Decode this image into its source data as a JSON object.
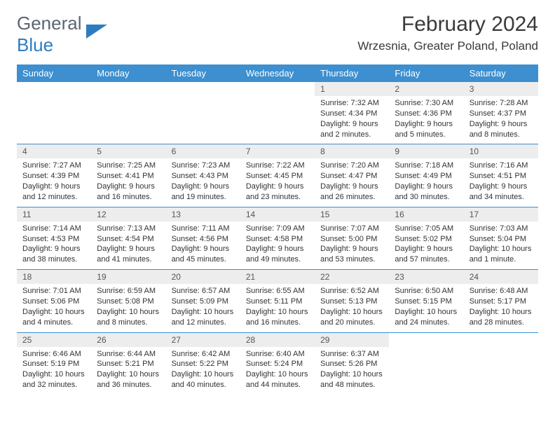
{
  "brand": {
    "part1": "General",
    "part2": "Blue"
  },
  "title": "February 2024",
  "location": "Wrzesnia, Greater Poland, Poland",
  "colors": {
    "header_bg": "#3d8fcf",
    "daynum_bg": "#ededed",
    "row_border": "#3d8fcf",
    "logo_gray": "#5c6670",
    "logo_blue": "#2e7cc0"
  },
  "columns": [
    "Sunday",
    "Monday",
    "Tuesday",
    "Wednesday",
    "Thursday",
    "Friday",
    "Saturday"
  ],
  "weeks": [
    [
      null,
      null,
      null,
      null,
      {
        "n": "1",
        "sunrise": "7:32 AM",
        "sunset": "4:34 PM",
        "daylight": "9 hours and 2 minutes."
      },
      {
        "n": "2",
        "sunrise": "7:30 AM",
        "sunset": "4:36 PM",
        "daylight": "9 hours and 5 minutes."
      },
      {
        "n": "3",
        "sunrise": "7:28 AM",
        "sunset": "4:37 PM",
        "daylight": "9 hours and 8 minutes."
      }
    ],
    [
      {
        "n": "4",
        "sunrise": "7:27 AM",
        "sunset": "4:39 PM",
        "daylight": "9 hours and 12 minutes."
      },
      {
        "n": "5",
        "sunrise": "7:25 AM",
        "sunset": "4:41 PM",
        "daylight": "9 hours and 16 minutes."
      },
      {
        "n": "6",
        "sunrise": "7:23 AM",
        "sunset": "4:43 PM",
        "daylight": "9 hours and 19 minutes."
      },
      {
        "n": "7",
        "sunrise": "7:22 AM",
        "sunset": "4:45 PM",
        "daylight": "9 hours and 23 minutes."
      },
      {
        "n": "8",
        "sunrise": "7:20 AM",
        "sunset": "4:47 PM",
        "daylight": "9 hours and 26 minutes."
      },
      {
        "n": "9",
        "sunrise": "7:18 AM",
        "sunset": "4:49 PM",
        "daylight": "9 hours and 30 minutes."
      },
      {
        "n": "10",
        "sunrise": "7:16 AM",
        "sunset": "4:51 PM",
        "daylight": "9 hours and 34 minutes."
      }
    ],
    [
      {
        "n": "11",
        "sunrise": "7:14 AM",
        "sunset": "4:53 PM",
        "daylight": "9 hours and 38 minutes."
      },
      {
        "n": "12",
        "sunrise": "7:13 AM",
        "sunset": "4:54 PM",
        "daylight": "9 hours and 41 minutes."
      },
      {
        "n": "13",
        "sunrise": "7:11 AM",
        "sunset": "4:56 PM",
        "daylight": "9 hours and 45 minutes."
      },
      {
        "n": "14",
        "sunrise": "7:09 AM",
        "sunset": "4:58 PM",
        "daylight": "9 hours and 49 minutes."
      },
      {
        "n": "15",
        "sunrise": "7:07 AM",
        "sunset": "5:00 PM",
        "daylight": "9 hours and 53 minutes."
      },
      {
        "n": "16",
        "sunrise": "7:05 AM",
        "sunset": "5:02 PM",
        "daylight": "9 hours and 57 minutes."
      },
      {
        "n": "17",
        "sunrise": "7:03 AM",
        "sunset": "5:04 PM",
        "daylight": "10 hours and 1 minute."
      }
    ],
    [
      {
        "n": "18",
        "sunrise": "7:01 AM",
        "sunset": "5:06 PM",
        "daylight": "10 hours and 4 minutes."
      },
      {
        "n": "19",
        "sunrise": "6:59 AM",
        "sunset": "5:08 PM",
        "daylight": "10 hours and 8 minutes."
      },
      {
        "n": "20",
        "sunrise": "6:57 AM",
        "sunset": "5:09 PM",
        "daylight": "10 hours and 12 minutes."
      },
      {
        "n": "21",
        "sunrise": "6:55 AM",
        "sunset": "5:11 PM",
        "daylight": "10 hours and 16 minutes."
      },
      {
        "n": "22",
        "sunrise": "6:52 AM",
        "sunset": "5:13 PM",
        "daylight": "10 hours and 20 minutes."
      },
      {
        "n": "23",
        "sunrise": "6:50 AM",
        "sunset": "5:15 PM",
        "daylight": "10 hours and 24 minutes."
      },
      {
        "n": "24",
        "sunrise": "6:48 AM",
        "sunset": "5:17 PM",
        "daylight": "10 hours and 28 minutes."
      }
    ],
    [
      {
        "n": "25",
        "sunrise": "6:46 AM",
        "sunset": "5:19 PM",
        "daylight": "10 hours and 32 minutes."
      },
      {
        "n": "26",
        "sunrise": "6:44 AM",
        "sunset": "5:21 PM",
        "daylight": "10 hours and 36 minutes."
      },
      {
        "n": "27",
        "sunrise": "6:42 AM",
        "sunset": "5:22 PM",
        "daylight": "10 hours and 40 minutes."
      },
      {
        "n": "28",
        "sunrise": "6:40 AM",
        "sunset": "5:24 PM",
        "daylight": "10 hours and 44 minutes."
      },
      {
        "n": "29",
        "sunrise": "6:37 AM",
        "sunset": "5:26 PM",
        "daylight": "10 hours and 48 minutes."
      },
      null,
      null
    ]
  ],
  "labels": {
    "sunrise": "Sunrise: ",
    "sunset": "Sunset: ",
    "daylight": "Daylight: "
  }
}
